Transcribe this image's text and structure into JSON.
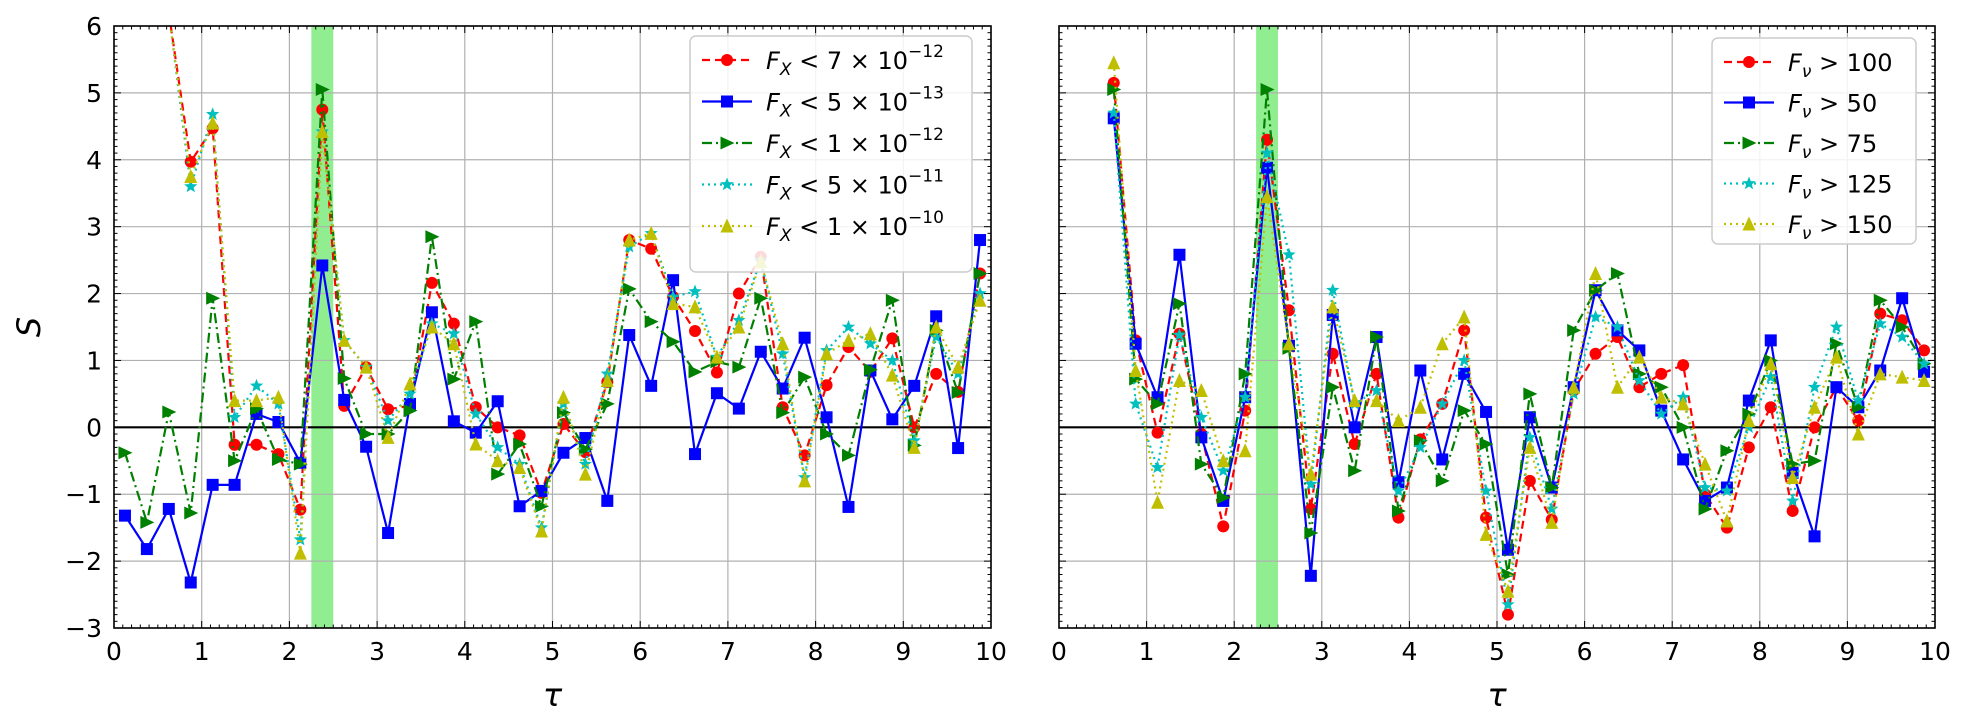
{
  "chart_data": [
    {
      "type": "line",
      "xlabel": "τ",
      "ylabel": "S",
      "xlim": [
        0,
        10
      ],
      "ylim": [
        -3,
        6
      ],
      "xticks": [
        "0",
        "1",
        "2",
        "3",
        "4",
        "5",
        "6",
        "7",
        "8",
        "9",
        "10"
      ],
      "yticks": [
        "−3",
        "−2",
        "−1",
        "0",
        "1",
        "2",
        "3",
        "4",
        "5",
        "6"
      ],
      "grid": true,
      "zero_line": 0,
      "highlight_band": [
        2.25,
        2.5
      ],
      "legend_position": "top-right",
      "series": [
        {
          "name": "F_X < 7 × 10^−12",
          "legend": {
            "base": "F",
            "sub": "X",
            "rel": " < 7 × 10",
            "exp": "−12"
          },
          "color": "#ff0000",
          "dash": "8,5",
          "marker": "circle",
          "x": [
            0.625,
            0.875,
            1.125,
            1.375,
            1.625,
            1.875,
            2.125,
            2.375,
            2.625,
            2.875,
            3.125,
            3.375,
            3.625,
            3.875,
            4.125,
            4.375,
            4.625,
            4.875,
            5.125,
            5.375,
            5.625,
            5.875,
            6.125,
            6.375,
            6.625,
            6.875,
            7.125,
            7.375,
            7.625,
            7.875,
            8.125,
            8.375,
            8.625,
            8.875,
            9.125,
            9.375,
            9.625,
            9.875
          ],
          "y": [
            6.2,
            3.97,
            4.47,
            -0.26,
            -0.26,
            -0.4,
            -1.23,
            4.75,
            0.32,
            0.9,
            0.27,
            0.32,
            2.16,
            1.55,
            0.3,
            0.0,
            -0.12,
            -0.98,
            0.05,
            -0.37,
            0.68,
            2.8,
            2.67,
            1.95,
            1.44,
            0.82,
            2.0,
            2.55,
            0.3,
            -0.42,
            0.63,
            1.2,
            0.83,
            1.33,
            0.0,
            0.8,
            0.53,
            2.3
          ]
        },
        {
          "name": "F_X < 5 × 10^−13",
          "legend": {
            "base": "F",
            "sub": "X",
            "rel": " < 5 × 10",
            "exp": "−13"
          },
          "color": "#0000ff",
          "dash": "",
          "marker": "square",
          "x": [
            0.125,
            0.375,
            0.625,
            0.875,
            1.125,
            1.375,
            1.625,
            1.875,
            2.125,
            2.375,
            2.625,
            2.875,
            3.125,
            3.375,
            3.625,
            3.875,
            4.125,
            4.375,
            4.625,
            4.875,
            5.125,
            5.375,
            5.625,
            5.875,
            6.125,
            6.375,
            6.625,
            6.875,
            7.125,
            7.375,
            7.625,
            7.875,
            8.125,
            8.375,
            8.625,
            8.875,
            9.125,
            9.375,
            9.625,
            9.875
          ],
          "y": [
            -1.32,
            -1.82,
            -1.22,
            -2.32,
            -0.86,
            -0.86,
            0.2,
            0.08,
            -0.53,
            2.42,
            0.41,
            -0.29,
            -1.58,
            0.35,
            1.72,
            0.09,
            -0.08,
            0.39,
            -1.18,
            -0.95,
            -0.38,
            -0.16,
            -1.1,
            1.38,
            0.62,
            2.2,
            -0.4,
            0.51,
            0.28,
            1.13,
            0.58,
            1.34,
            0.15,
            -1.19,
            0.85,
            0.12,
            0.62,
            1.66,
            -0.31,
            2.8
          ]
        },
        {
          "name": "F_X < 1 × 10^−12",
          "legend": {
            "base": "F",
            "sub": "X",
            "rel": " < 1 × 10",
            "exp": "−12"
          },
          "color": "#008000",
          "dash": "10,4,2,4",
          "marker": "triangle-right",
          "x": [
            0.125,
            0.375,
            0.625,
            0.875,
            1.125,
            1.375,
            1.625,
            1.875,
            2.125,
            2.375,
            2.625,
            2.875,
            3.125,
            3.375,
            3.625,
            3.875,
            4.125,
            4.375,
            4.625,
            4.875,
            5.125,
            5.375,
            5.625,
            5.875,
            6.125,
            6.375,
            6.625,
            6.875,
            7.125,
            7.375,
            7.625,
            7.875,
            8.125,
            8.375,
            8.625,
            8.875,
            9.125,
            9.375,
            9.625,
            9.875
          ],
          "y": [
            -0.38,
            -1.42,
            0.23,
            -1.28,
            1.93,
            -0.5,
            0.28,
            -0.48,
            -0.55,
            5.05,
            0.73,
            -0.1,
            -0.1,
            0.25,
            2.85,
            0.72,
            1.58,
            -0.7,
            -0.25,
            -1.18,
            0.22,
            -0.33,
            0.35,
            2.07,
            1.58,
            1.28,
            0.83,
            0.98,
            0.9,
            1.93,
            0.22,
            0.75,
            -0.1,
            -0.42,
            0.86,
            1.9,
            -0.27,
            1.45,
            0.52,
            2.3
          ]
        },
        {
          "name": "F_X < 5 × 10^−11",
          "legend": {
            "base": "F",
            "sub": "X",
            "rel": " < 5 × 10",
            "exp": "−11"
          },
          "color": "#00bfbf",
          "dash": "2,4",
          "marker": "star",
          "x": [
            0.625,
            0.875,
            1.125,
            1.375,
            1.625,
            1.875,
            2.125,
            2.375,
            2.625,
            2.875,
            3.125,
            3.375,
            3.625,
            3.875,
            4.125,
            4.375,
            4.625,
            4.875,
            5.125,
            5.375,
            5.625,
            5.875,
            6.125,
            6.375,
            6.625,
            6.875,
            7.125,
            7.375,
            7.625,
            7.875,
            8.125,
            8.375,
            8.625,
            8.875,
            9.125,
            9.375,
            9.625,
            9.875
          ],
          "y": [
            6.2,
            3.6,
            4.68,
            0.15,
            0.62,
            0.35,
            -1.68,
            4.42,
            1.3,
            0.9,
            0.1,
            0.5,
            1.55,
            1.4,
            0.2,
            -0.3,
            -0.55,
            -1.5,
            0.35,
            -0.55,
            0.8,
            2.7,
            2.9,
            1.95,
            2.03,
            1.05,
            1.6,
            2.5,
            1.1,
            -0.75,
            1.15,
            1.5,
            1.25,
            1.0,
            -0.2,
            1.35,
            0.8,
            2.0
          ]
        },
        {
          "name": "F_X < 1 × 10^−10",
          "legend": {
            "base": "F",
            "sub": "X",
            "rel": " < 1 × 10",
            "exp": "−10"
          },
          "color": "#bfbf00",
          "dash": "2,4",
          "marker": "triangle-up",
          "x": [
            0.625,
            0.875,
            1.125,
            1.375,
            1.625,
            1.875,
            2.125,
            2.375,
            2.625,
            2.875,
            3.125,
            3.375,
            3.625,
            3.875,
            4.125,
            4.375,
            4.625,
            4.875,
            5.125,
            5.375,
            5.625,
            5.875,
            6.125,
            6.375,
            6.625,
            6.875,
            7.125,
            7.375,
            7.625,
            7.875,
            8.125,
            8.375,
            8.625,
            8.875,
            9.125,
            9.375,
            9.625,
            9.875
          ],
          "y": [
            6.2,
            3.75,
            4.55,
            0.4,
            0.4,
            0.45,
            -1.88,
            4.42,
            1.3,
            0.9,
            -0.15,
            0.65,
            1.5,
            1.25,
            -0.25,
            -0.5,
            -0.6,
            -1.55,
            0.45,
            -0.7,
            0.7,
            2.8,
            2.9,
            1.85,
            1.8,
            1.05,
            1.5,
            2.48,
            1.25,
            -0.8,
            1.1,
            1.3,
            1.4,
            0.78,
            -0.3,
            1.5,
            0.9,
            1.9
          ]
        }
      ]
    },
    {
      "type": "line",
      "xlabel": "τ",
      "ylabel": "",
      "xlim": [
        0,
        10
      ],
      "ylim": [
        -3,
        6
      ],
      "xticks": [
        "0",
        "1",
        "2",
        "3",
        "4",
        "5",
        "6",
        "7",
        "8",
        "9",
        "10"
      ],
      "grid": true,
      "zero_line": 0,
      "highlight_band": [
        2.25,
        2.5
      ],
      "legend_position": "top-right",
      "series": [
        {
          "name": "F_ν > 100",
          "legend": {
            "base": "F",
            "sub": "ν",
            "rel": " > 100",
            "exp": ""
          },
          "color": "#ff0000",
          "dash": "8,5",
          "marker": "circle",
          "x": [
            0.625,
            0.875,
            1.125,
            1.375,
            1.625,
            1.875,
            2.125,
            2.375,
            2.625,
            2.875,
            3.125,
            3.375,
            3.625,
            3.875,
            4.125,
            4.375,
            4.625,
            4.875,
            5.125,
            5.375,
            5.625,
            5.875,
            6.125,
            6.375,
            6.625,
            6.875,
            7.125,
            7.375,
            7.625,
            7.875,
            8.125,
            8.375,
            8.625,
            8.875,
            9.125,
            9.375,
            9.625,
            9.875
          ],
          "y": [
            5.15,
            1.3,
            -0.08,
            1.4,
            -0.1,
            -1.48,
            0.25,
            4.3,
            1.75,
            -1.22,
            1.1,
            -0.25,
            0.8,
            -1.35,
            -0.18,
            0.35,
            1.45,
            -1.35,
            -2.8,
            -0.8,
            -1.38,
            0.55,
            1.1,
            1.35,
            0.6,
            0.8,
            0.93,
            -1.0,
            -1.5,
            -0.3,
            0.3,
            -1.25,
            0.0,
            0.6,
            0.1,
            1.7,
            1.6,
            1.15
          ]
        },
        {
          "name": "F_ν > 50",
          "legend": {
            "base": "F",
            "sub": "ν",
            "rel": " > 50",
            "exp": ""
          },
          "color": "#0000ff",
          "dash": "",
          "marker": "square",
          "x": [
            0.625,
            0.875,
            1.125,
            1.375,
            1.625,
            1.875,
            2.125,
            2.375,
            2.625,
            2.875,
            3.125,
            3.375,
            3.625,
            3.875,
            4.125,
            4.375,
            4.625,
            4.875,
            5.125,
            5.375,
            5.625,
            5.875,
            6.125,
            6.375,
            6.625,
            6.875,
            7.125,
            7.375,
            7.625,
            7.875,
            8.125,
            8.375,
            8.625,
            8.875,
            9.125,
            9.375,
            9.625,
            9.875
          ],
          "y": [
            4.62,
            1.25,
            0.45,
            2.58,
            -0.15,
            -1.1,
            0.45,
            3.88,
            1.22,
            -2.22,
            1.68,
            0.0,
            1.35,
            -0.82,
            0.85,
            -0.48,
            0.8,
            0.23,
            -1.83,
            0.15,
            -0.9,
            0.6,
            2.05,
            1.45,
            1.15,
            0.25,
            -0.48,
            -1.1,
            -0.9,
            0.4,
            1.3,
            -0.68,
            -1.63,
            0.6,
            0.3,
            0.85,
            1.93,
            0.83
          ]
        },
        {
          "name": "F_ν > 75",
          "legend": {
            "base": "F",
            "sub": "ν",
            "rel": " > 75",
            "exp": ""
          },
          "color": "#008000",
          "dash": "10,4,2,4",
          "marker": "triangle-right",
          "x": [
            0.625,
            0.875,
            1.125,
            1.375,
            1.625,
            1.875,
            2.125,
            2.375,
            2.625,
            2.875,
            3.125,
            3.375,
            3.625,
            3.875,
            4.125,
            4.375,
            4.625,
            4.875,
            5.125,
            5.375,
            5.625,
            5.875,
            6.125,
            6.375,
            6.625,
            6.875,
            7.125,
            7.375,
            7.625,
            7.875,
            8.125,
            8.375,
            8.625,
            8.875,
            9.125,
            9.375,
            9.625,
            9.875
          ],
          "y": [
            5.05,
            0.72,
            0.35,
            1.85,
            -0.55,
            -1.05,
            0.8,
            5.05,
            1.18,
            -1.58,
            0.6,
            -0.65,
            1.35,
            -1.25,
            -0.2,
            -0.8,
            0.25,
            -0.25,
            -2.2,
            0.5,
            -0.9,
            1.45,
            2.05,
            2.3,
            0.8,
            0.6,
            0.0,
            -1.22,
            -0.35,
            0.2,
            1.0,
            -0.55,
            -0.5,
            1.25,
            0.3,
            1.9,
            1.5,
            0.95
          ]
        },
        {
          "name": "F_ν > 125",
          "legend": {
            "base": "F",
            "sub": "ν",
            "rel": " > 125",
            "exp": ""
          },
          "color": "#00bfbf",
          "dash": "2,4",
          "marker": "star",
          "x": [
            0.625,
            0.875,
            1.125,
            1.375,
            1.625,
            1.875,
            2.125,
            2.375,
            2.625,
            2.875,
            3.125,
            3.375,
            3.625,
            3.875,
            4.125,
            4.375,
            4.625,
            4.875,
            5.125,
            5.375,
            5.625,
            5.875,
            6.125,
            6.375,
            6.625,
            6.875,
            7.125,
            7.375,
            7.625,
            7.875,
            8.125,
            8.375,
            8.625,
            8.875,
            9.125,
            9.375,
            9.625,
            9.875
          ],
          "y": [
            4.7,
            0.35,
            -0.6,
            1.38,
            0.15,
            -0.65,
            0.45,
            4.1,
            2.58,
            -0.85,
            2.05,
            0.35,
            0.55,
            -0.95,
            -0.3,
            0.35,
            1.0,
            -0.95,
            -2.65,
            -0.15,
            -1.22,
            0.5,
            1.65,
            1.5,
            0.7,
            0.2,
            0.45,
            -0.9,
            -0.95,
            0.0,
            0.75,
            -1.1,
            0.6,
            1.5,
            0.4,
            1.55,
            1.35,
            0.95
          ]
        },
        {
          "name": "F_ν > 150",
          "legend": {
            "base": "F",
            "sub": "ν",
            "rel": " > 150",
            "exp": ""
          },
          "color": "#bfbf00",
          "dash": "2,4",
          "marker": "triangle-up",
          "x": [
            0.625,
            0.875,
            1.125,
            1.375,
            1.625,
            1.875,
            2.125,
            2.375,
            2.625,
            2.875,
            3.125,
            3.375,
            3.625,
            3.875,
            4.125,
            4.375,
            4.625,
            4.875,
            5.125,
            5.375,
            5.625,
            5.875,
            6.125,
            6.375,
            6.625,
            6.875,
            7.125,
            7.375,
            7.625,
            7.875,
            8.125,
            8.375,
            8.625,
            8.875,
            9.125,
            9.375,
            9.625,
            9.875
          ],
          "y": [
            5.45,
            0.85,
            -1.12,
            0.7,
            0.55,
            -0.5,
            -0.35,
            3.45,
            1.25,
            -0.7,
            1.8,
            0.4,
            0.4,
            0.1,
            0.3,
            1.25,
            1.65,
            -1.6,
            -2.45,
            -0.3,
            -1.42,
            0.6,
            2.3,
            0.6,
            1.05,
            0.45,
            0.35,
            -0.55,
            -1.4,
            0.1,
            0.95,
            -0.75,
            0.3,
            1.05,
            -0.1,
            0.8,
            0.75,
            0.7
          ]
        }
      ]
    }
  ]
}
